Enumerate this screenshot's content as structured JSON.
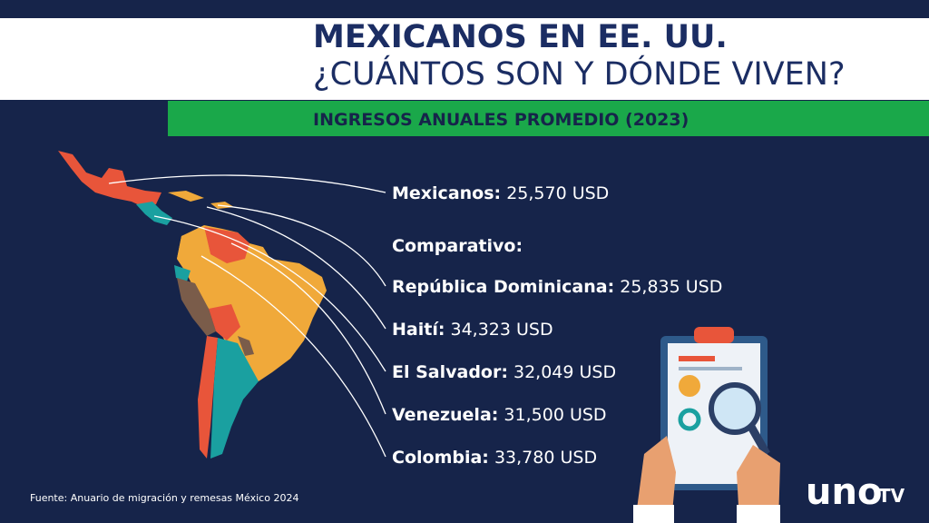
{
  "header": {
    "title": "MEXICANOS EN EE. UU.",
    "subtitle": "¿CUÁNTOS SON Y DÓNDE VIVEN?",
    "band": "INGRESOS ANUALES PROMEDIO (2023)"
  },
  "main": {
    "label": "Mexicanos:",
    "value": "25,570 USD"
  },
  "comparison": {
    "heading": "Comparativo:",
    "items": [
      {
        "label": "República Dominicana:",
        "value": "25,835 USD"
      },
      {
        "label": "Haití:",
        "value": "34,323 USD"
      },
      {
        "label": "El Salvador:",
        "value": "32,049 USD"
      },
      {
        "label": "Venezuela:",
        "value": "31,500 USD"
      },
      {
        "label": "Colombia:",
        "value": "33,780 USD"
      }
    ]
  },
  "source": "Fuente: Anuario de migración y remesas México 2024",
  "logo": {
    "brand": "uno",
    "suffix": "TV"
  }
}
